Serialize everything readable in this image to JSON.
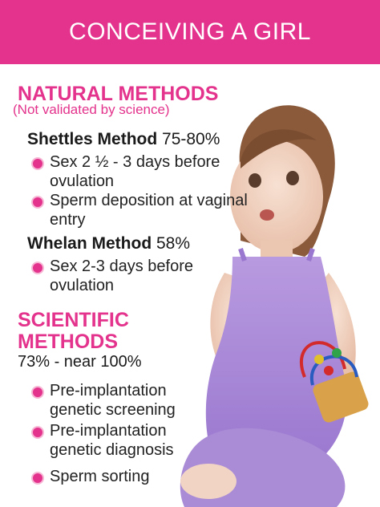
{
  "header": {
    "title": "CONCEIVING A GIRL",
    "bg_color": "#e3338c"
  },
  "natural": {
    "title": "NATURAL METHODS",
    "subtitle": "(Not validated by science)",
    "methods": [
      {
        "name": "Shettles Method",
        "rate": "75-80%",
        "items": [
          "Sex 2 ½ - 3 days before ovulation",
          "Sperm deposition at vaginal entry"
        ]
      },
      {
        "name": "Whelan Method",
        "rate": "58%",
        "items": [
          "Sex 2-3 days before ovulation"
        ]
      }
    ]
  },
  "scientific": {
    "title_line1": "SCIENTIFIC",
    "title_line2": "METHODS",
    "range": "73% - near 100%",
    "items": [
      "Pre-implantation genetic screening",
      "Pre-implantation genetic diagnosis",
      "Sperm sorting"
    ]
  },
  "colors": {
    "accent": "#e3338c",
    "bullet_ring": "#f6b7d5",
    "dress": "#a98bd6"
  },
  "illustration": {
    "subject": "toddler-girl-with-bead-maze-toy"
  }
}
